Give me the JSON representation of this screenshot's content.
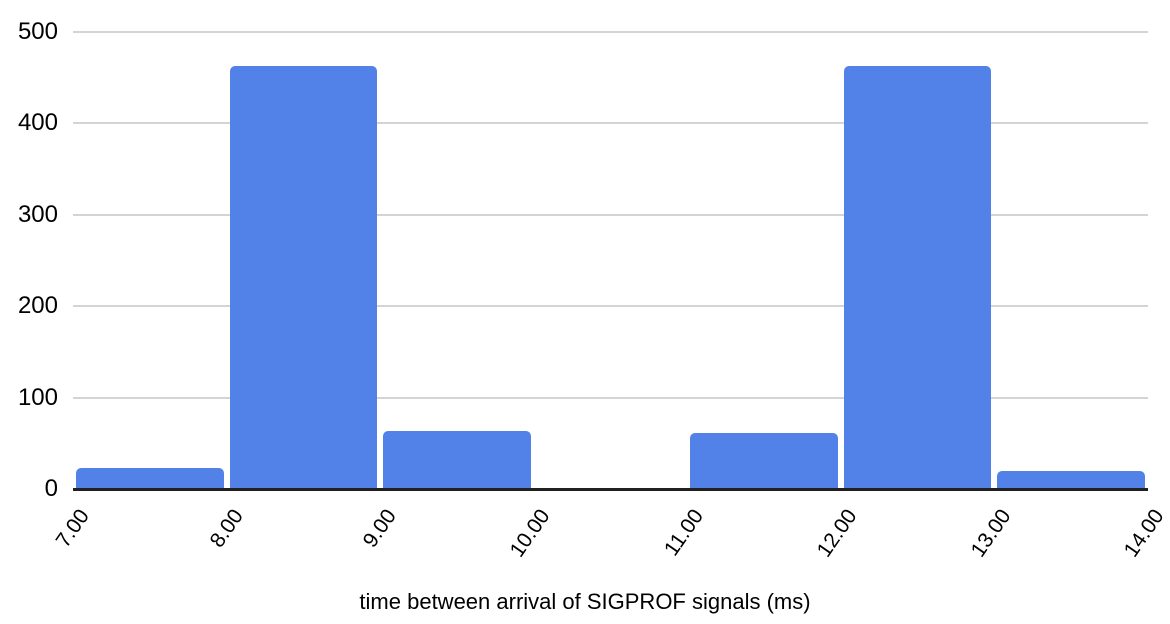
{
  "chart_data": {
    "type": "bar",
    "subtype": "histogram",
    "title": "",
    "xlabel": "time between arrival of SIGPROF signals (ms)",
    "ylabel": "",
    "bin_edges": [
      7.0,
      8.0,
      9.0,
      10.0,
      11.0,
      12.0,
      13.0,
      14.0
    ],
    "x_tick_labels": [
      "7.00",
      "8.00",
      "9.00",
      "10.00",
      "11.00",
      "12.00",
      "13.00",
      "14.00"
    ],
    "categories": [
      "7.00-8.00",
      "8.00-9.00",
      "9.00-10.00",
      "10.00-11.00",
      "11.00-12.00",
      "12.00-13.00",
      "13.00-14.00"
    ],
    "values": [
      23,
      462,
      63,
      0,
      61,
      462,
      20
    ],
    "y_ticks": [
      0,
      100,
      200,
      300,
      400,
      500
    ],
    "ylim": [
      0,
      500
    ],
    "grid": true,
    "legend": false,
    "colors": {
      "bar": "#5282e8",
      "gridline": "#d4d4d4",
      "axis_line": "#212121",
      "text": "#000000",
      "background": "#ffffff"
    }
  }
}
